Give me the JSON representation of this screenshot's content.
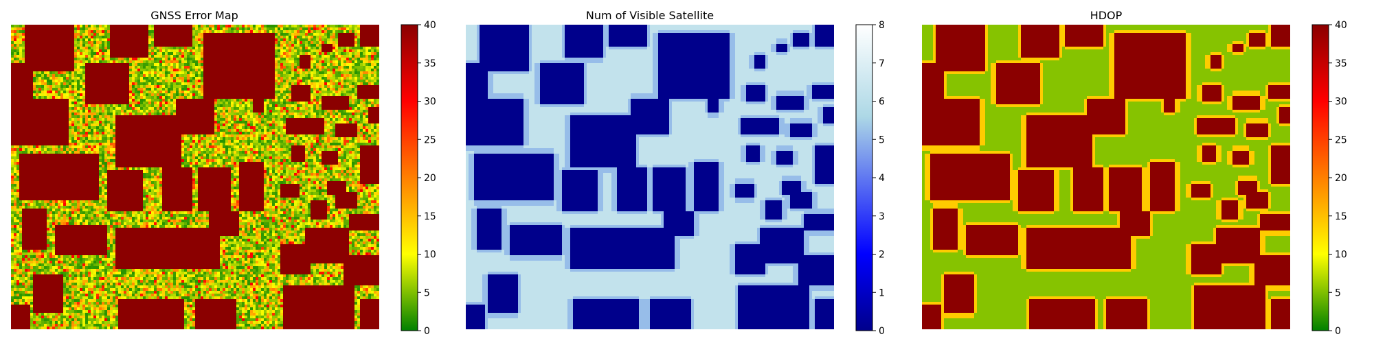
{
  "chart_data": [
    {
      "type": "heatmap",
      "title": "GNSS Error Map",
      "colormap": [
        "#008000",
        "#ffff00",
        "#ff0000",
        "#8b0000"
      ],
      "zlim": [
        0,
        40
      ],
      "colorbar_ticks": [
        "0",
        "5",
        "10",
        "15",
        "20",
        "25",
        "30",
        "35",
        "40"
      ],
      "axes": "off",
      "legend": "colorbar-right",
      "value_summary": {
        "building": 40,
        "open_area_range": [
          2,
          20
        ]
      }
    },
    {
      "type": "heatmap",
      "title": "Num of Visible Satellite",
      "colormap": [
        "#00008b",
        "#0000ff",
        "#add8e6",
        "#ffffff"
      ],
      "zlim": [
        0,
        8
      ],
      "colorbar_ticks": [
        "0",
        "1",
        "2",
        "3",
        "4",
        "5",
        "6",
        "7",
        "8"
      ],
      "axes": "off",
      "legend": "colorbar-right",
      "value_summary": {
        "building": 0,
        "open_area": 6,
        "edge": 5
      }
    },
    {
      "type": "heatmap",
      "title": "HDOP",
      "colormap": [
        "#008000",
        "#ffff00",
        "#ff0000",
        "#8b0000"
      ],
      "zlim": [
        0,
        40
      ],
      "colorbar_ticks": [
        "0",
        "5",
        "10",
        "15",
        "20",
        "25",
        "30",
        "35",
        "40"
      ],
      "axes": "off",
      "legend": "colorbar-right",
      "value_summary": {
        "building": 40,
        "open_area": 7,
        "edge": 16
      }
    }
  ]
}
